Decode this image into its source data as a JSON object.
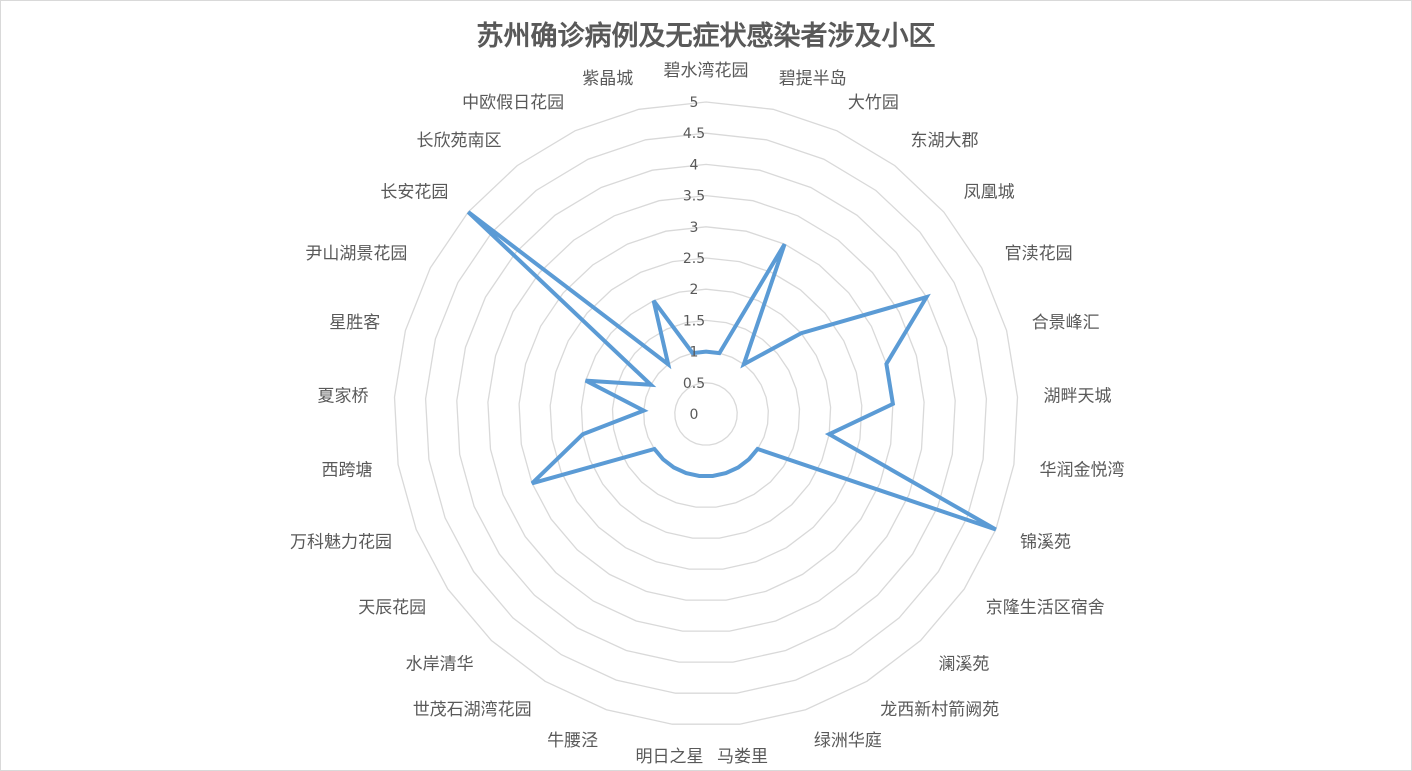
{
  "chart_data": {
    "type": "radar",
    "title": "苏州确诊病例及无症状感染者涉及小区",
    "categories": [
      "碧水湾花园",
      "碧提半岛",
      "大竹园",
      "东湖大郡",
      "凤凰城",
      "官渎花园",
      "合景峰汇",
      "湖畔天城",
      "华润金悦湾",
      "锦溪苑",
      "京隆生活区宿舍",
      "澜溪苑",
      "龙西新村箭阙苑",
      "绿洲华庭",
      "马娄里",
      "明日之星",
      "牛腰泾",
      "世茂石湖湾花园",
      "水岸清华",
      "天辰花园",
      "万科魅力花园",
      "西跨塘",
      "夏家桥",
      "星胜客",
      "尹山湖景花园",
      "长安花园",
      "长欣苑南区",
      "中欧假日花园",
      "紫晶城"
    ],
    "series": [
      {
        "values": [
          1,
          1,
          3,
          1,
          2,
          4,
          3,
          3,
          2,
          5,
          1,
          1,
          1,
          1,
          1,
          1,
          1,
          1,
          1,
          1,
          3,
          2,
          1,
          2,
          1,
          5,
          1,
          2,
          1
        ]
      }
    ],
    "axis": {
      "min": 0,
      "max": 5,
      "step": 0.5,
      "tick_labels": [
        "0",
        "0.5",
        "1",
        "1.5",
        "2",
        "2.5",
        "3",
        "3.5",
        "4",
        "4.5",
        "5"
      ]
    },
    "grid": true,
    "legend": "none",
    "colors": {
      "series": "#5b9bd5",
      "grid": "#d9d9d9",
      "text": "#595959"
    }
  }
}
